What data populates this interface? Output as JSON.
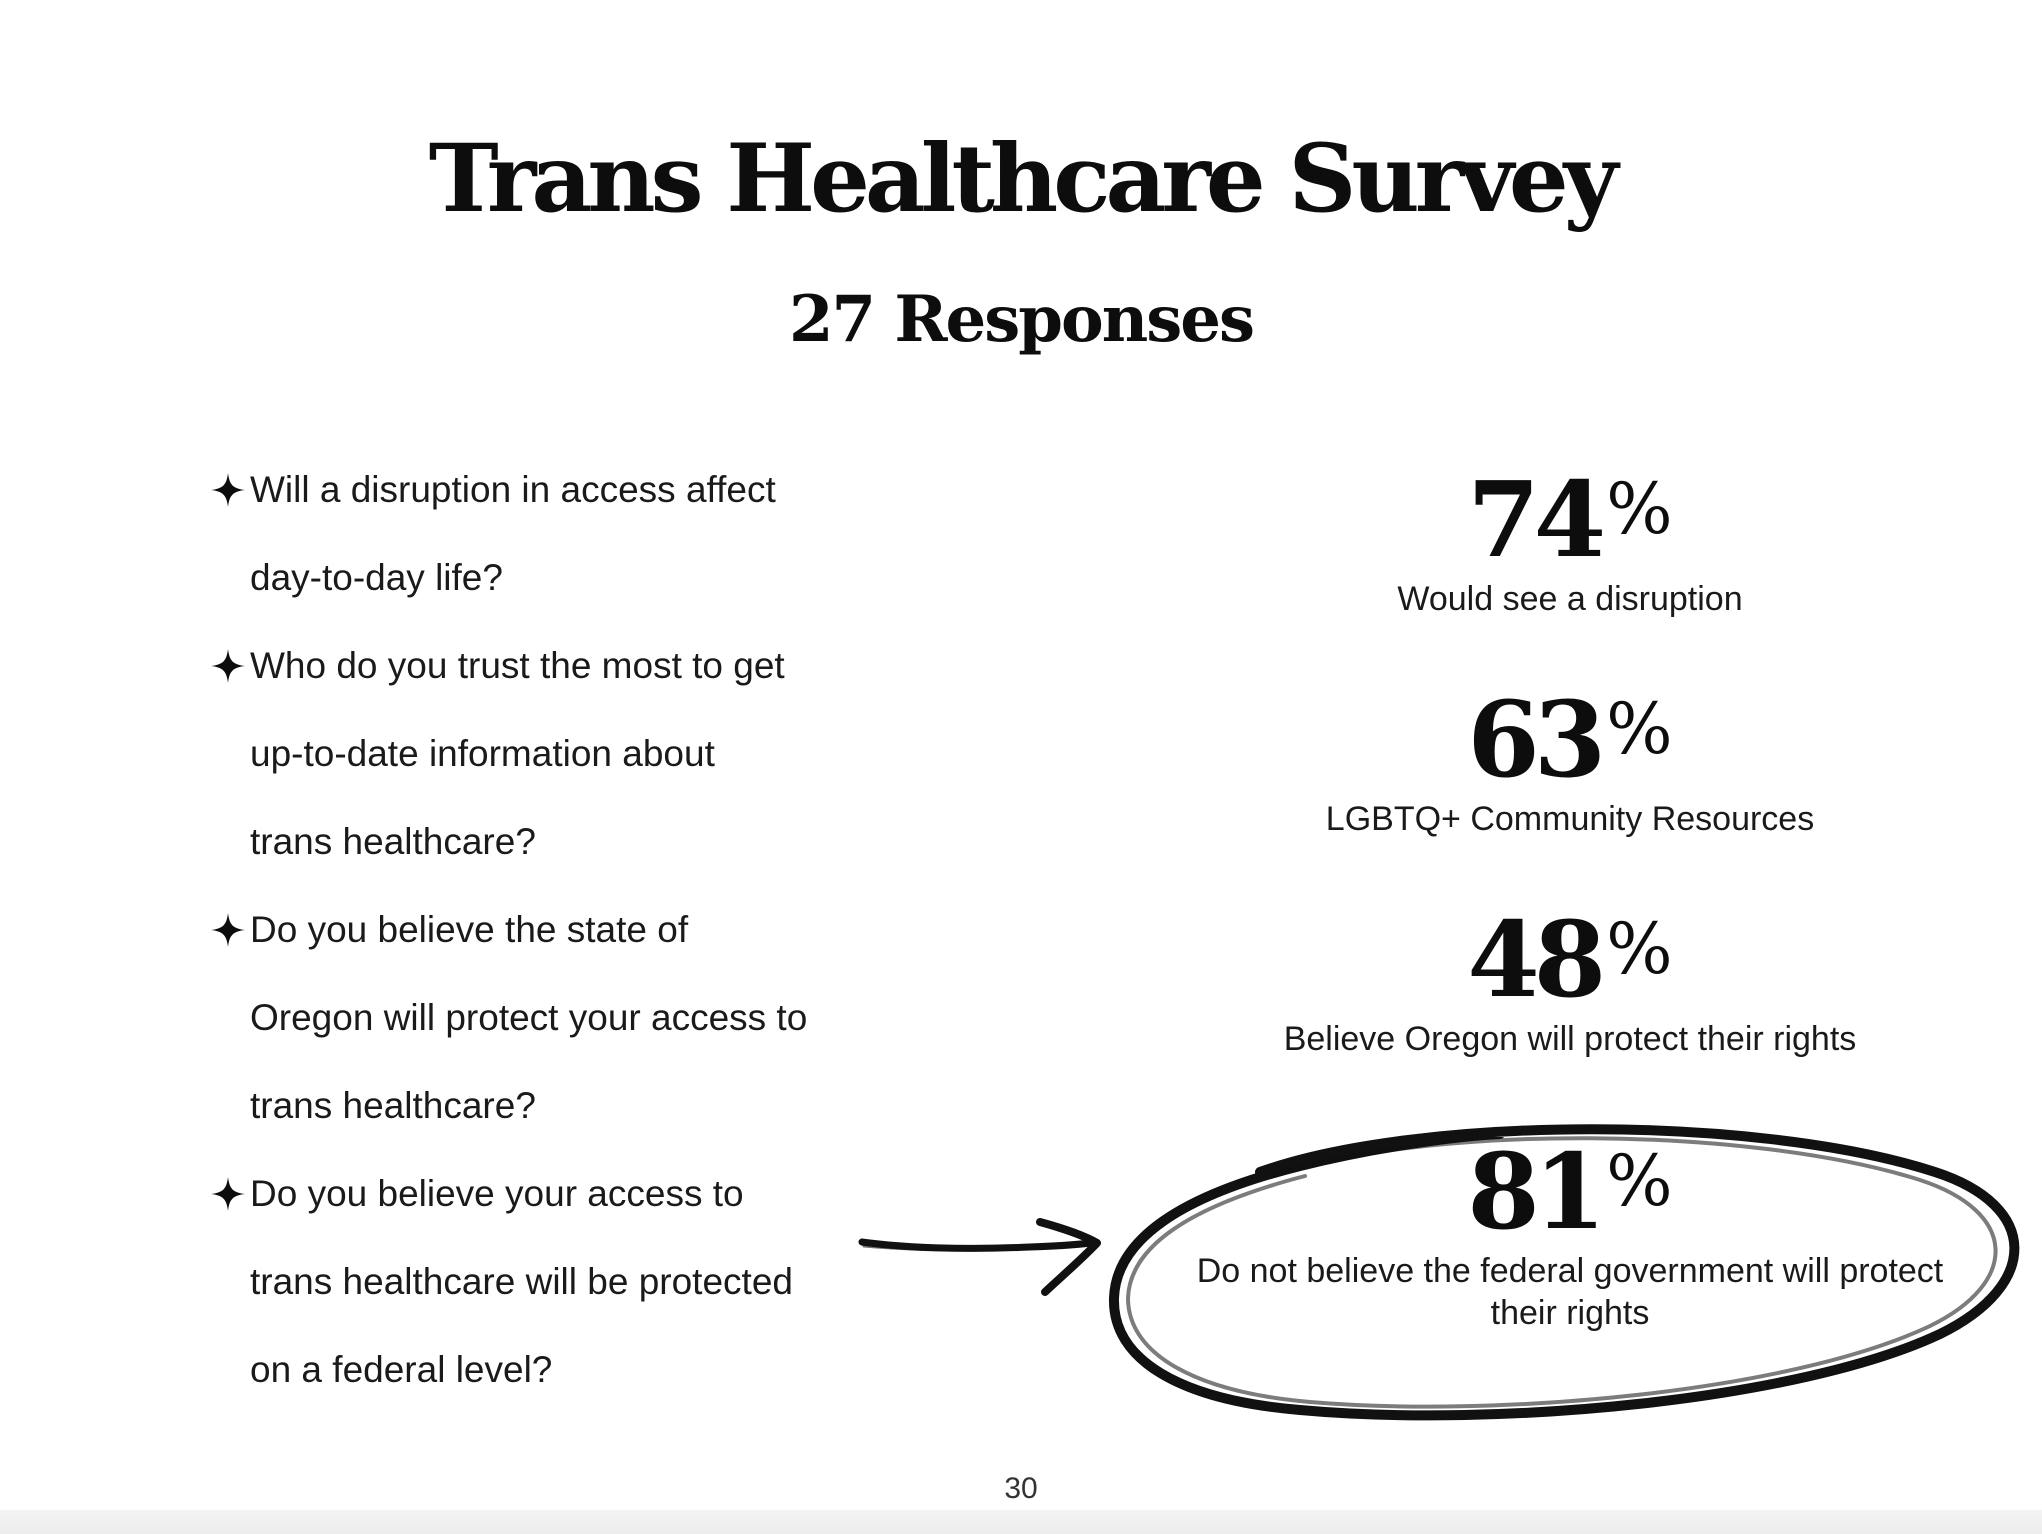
{
  "title": "Trans Healthcare Survey",
  "subtitle": "27 Responses",
  "bullet_icon": "four-point-star-icon",
  "questions": [
    {
      "lines": [
        "Will a disruption in access affect",
        "day-to-day life?"
      ]
    },
    {
      "lines": [
        "Who do you trust the most to get",
        "up-to-date information about",
        "trans healthcare?"
      ]
    },
    {
      "lines": [
        "Do you believe the state of",
        "Oregon will protect your access to",
        "trans healthcare?"
      ]
    },
    {
      "lines": [
        "Do you believe your access to",
        "trans healthcare will be protected",
        "on a federal level?"
      ]
    }
  ],
  "stats": [
    {
      "value": "74",
      "unit": "%",
      "label": "Would see a disruption"
    },
    {
      "value": "63",
      "unit": "%",
      "label": "LGBTQ+ Community Resources"
    },
    {
      "value": "48",
      "unit": "%",
      "label": "Believe Oregon will protect their rights"
    },
    {
      "value": "81",
      "unit": "%",
      "label": "Do not believe the federal government will protect their rights",
      "highlighted": true
    }
  ],
  "annotations": {
    "arrow_icon": "hand-drawn-arrow-icon",
    "circle_icon": "hand-drawn-circle-icon",
    "ink_color": "#111111"
  },
  "page_number": "30"
}
